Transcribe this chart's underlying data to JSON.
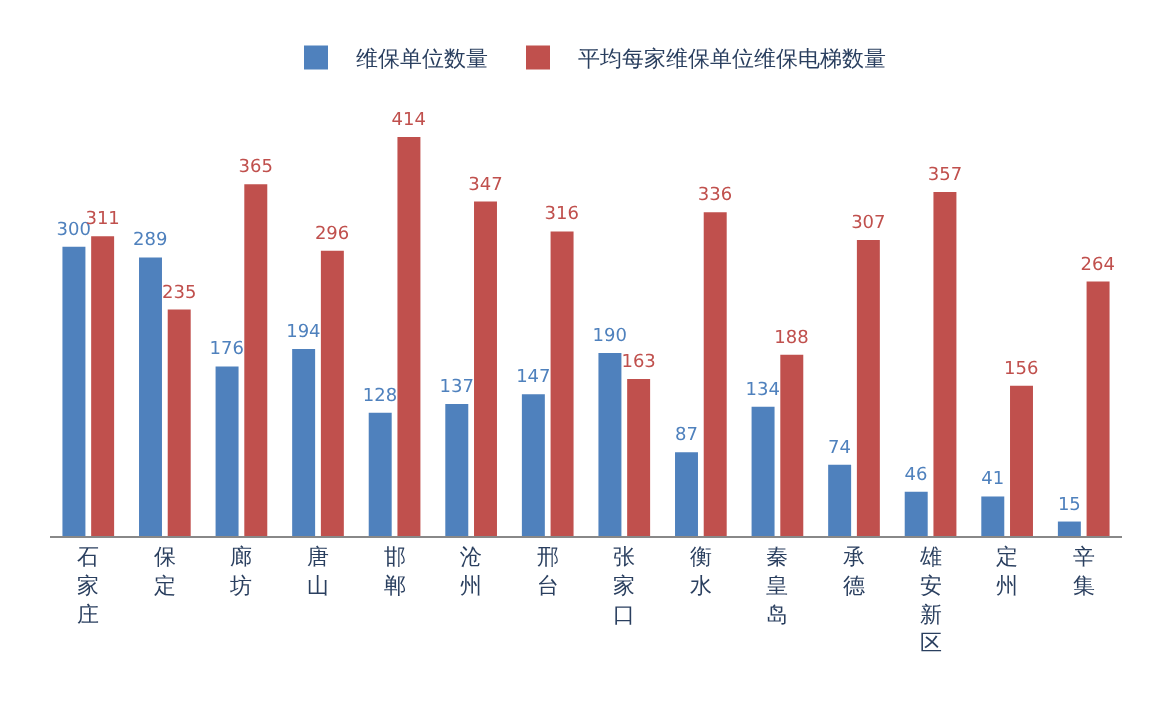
{
  "chart_data": {
    "type": "bar",
    "categories": [
      "石家庄",
      "保定",
      "廊坊",
      "唐山",
      "邯郸",
      "沧州",
      "邢台",
      "张家口",
      "衡水",
      "秦皇岛",
      "承德",
      "雄安新区",
      "定州",
      "辛集"
    ],
    "series": [
      {
        "name": "维保单位数量",
        "color": "#4f81bd",
        "values": [
          300,
          289,
          176,
          194,
          128,
          137,
          147,
          190,
          87,
          134,
          74,
          46,
          41,
          15
        ]
      },
      {
        "name": "平均每家维保单位维保电梯数量",
        "color": "#c0504d",
        "values": [
          311,
          235,
          365,
          296,
          414,
          347,
          316,
          163,
          336,
          188,
          307,
          357,
          156,
          264
        ]
      }
    ],
    "data_labels": true,
    "legend": "top"
  }
}
